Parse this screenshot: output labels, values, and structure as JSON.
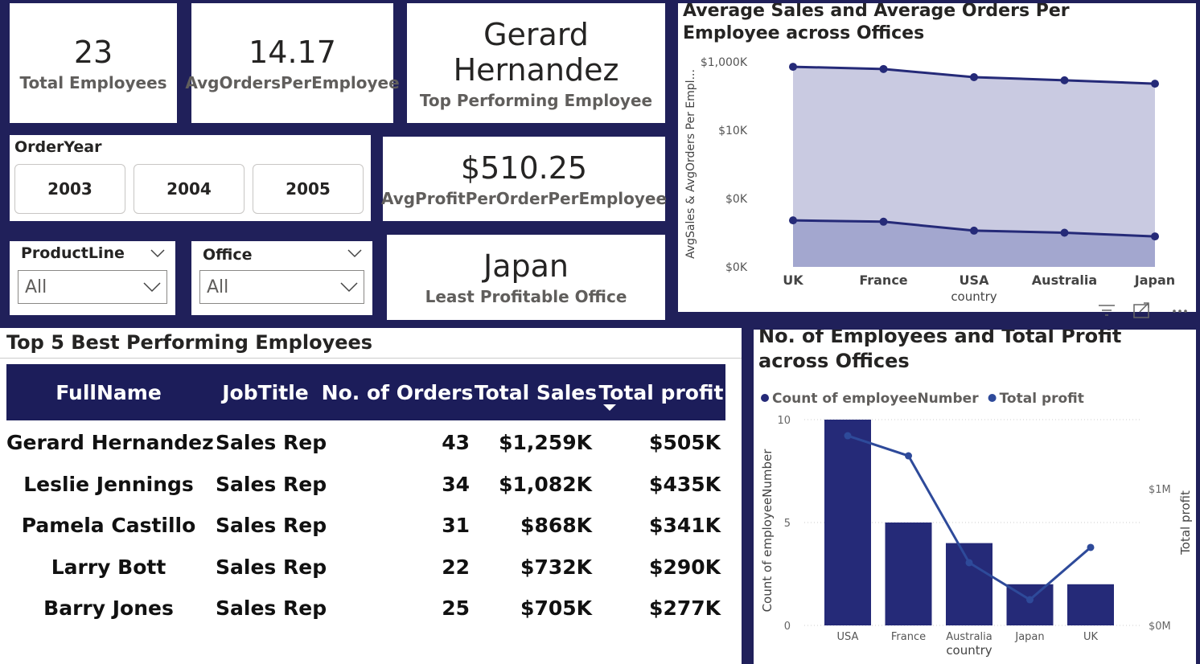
{
  "cards": [
    {
      "value": "23",
      "label": "Total Employees"
    },
    {
      "value": "14.17",
      "label": "AvgOrdersPerEmployee"
    },
    {
      "value": "Gerard Hernandez",
      "label": "Top Performing Employee"
    },
    {
      "value": "$510.25",
      "label": "AvgProfitPerOrderPerEmployee"
    },
    {
      "value": "Japan",
      "label": "Least Profitable Office"
    }
  ],
  "year_slicer": {
    "title": "OrderYear",
    "options": [
      "2003",
      "2004",
      "2005"
    ]
  },
  "dropdowns": [
    {
      "title": "ProductLine",
      "value": "All"
    },
    {
      "title": "Office",
      "value": "All"
    }
  ],
  "table": {
    "title": "Top 5 Best Performing Employees",
    "columns": [
      "FullName",
      "JobTitle",
      "No. of Orders",
      "Total Sales",
      "Total profit"
    ],
    "rows": [
      [
        "Gerard Hernandez",
        "Sales Rep",
        43,
        "$1,259K",
        "$505K"
      ],
      [
        "Leslie Jennings",
        "Sales Rep",
        34,
        "$1,082K",
        "$435K"
      ],
      [
        "Pamela Castillo",
        "Sales Rep",
        31,
        "$868K",
        "$341K"
      ],
      [
        "Larry Bott",
        "Sales Rep",
        22,
        "$732K",
        "$290K"
      ],
      [
        "Barry Jones",
        "Sales Rep",
        25,
        "$705K",
        "$277K"
      ]
    ]
  },
  "chart_data": [
    {
      "type": "area",
      "title": "Average Sales and Average Orders Per Employee across Offices",
      "y_label": "AvgSales & AvgOrders Per Empl...",
      "x_label": "country",
      "categories": [
        "UK",
        "France",
        "USA",
        "Australia",
        "Japan"
      ],
      "log_scale": true,
      "ylim": [
        1,
        1000000
      ],
      "yticks": [
        {
          "value": 1,
          "label": "$0K"
        },
        {
          "value": 100,
          "label": "$0K"
        },
        {
          "value": 10000,
          "label": "$10K"
        },
        {
          "value": 1000000,
          "label": "$1,000K"
        }
      ],
      "series": [
        {
          "color": "#252a78",
          "fill": "#c9cae1",
          "values": [
            720000,
            620000,
            357000,
            290000,
            230000
          ]
        },
        {
          "color": "#252a78",
          "fill": "#a3a7cf",
          "values": [
            23,
            21,
            11.5,
            10,
            7.8
          ]
        }
      ]
    },
    {
      "type": "bar-line",
      "title": "No. of Employees and Total Profit across Offices",
      "y_label": "Count of employeeNumber",
      "y2_label": "Total profit",
      "x_label": "country",
      "categories": [
        "USA",
        "France",
        "Australia",
        "Japan",
        "UK"
      ],
      "ylim": [
        0,
        10
      ],
      "yticks": [
        0,
        5,
        10
      ],
      "y2lim": [
        0,
        1506000
      ],
      "y2ticks": [
        {
          "value": 0,
          "label": "$0M"
        },
        {
          "value": 1000000,
          "label": "$1M"
        }
      ],
      "grid": true,
      "series": [
        {
          "name": "Count of employeeNumber",
          "color": "#252a78",
          "values": [
            10,
            5,
            4,
            2,
            2
          ]
        },
        {
          "name": "Total profit",
          "color": "#2e4a9a",
          "axis": "y2",
          "values": [
            1388000,
            1241000,
            459000,
            188000,
            571000
          ]
        }
      ]
    }
  ]
}
